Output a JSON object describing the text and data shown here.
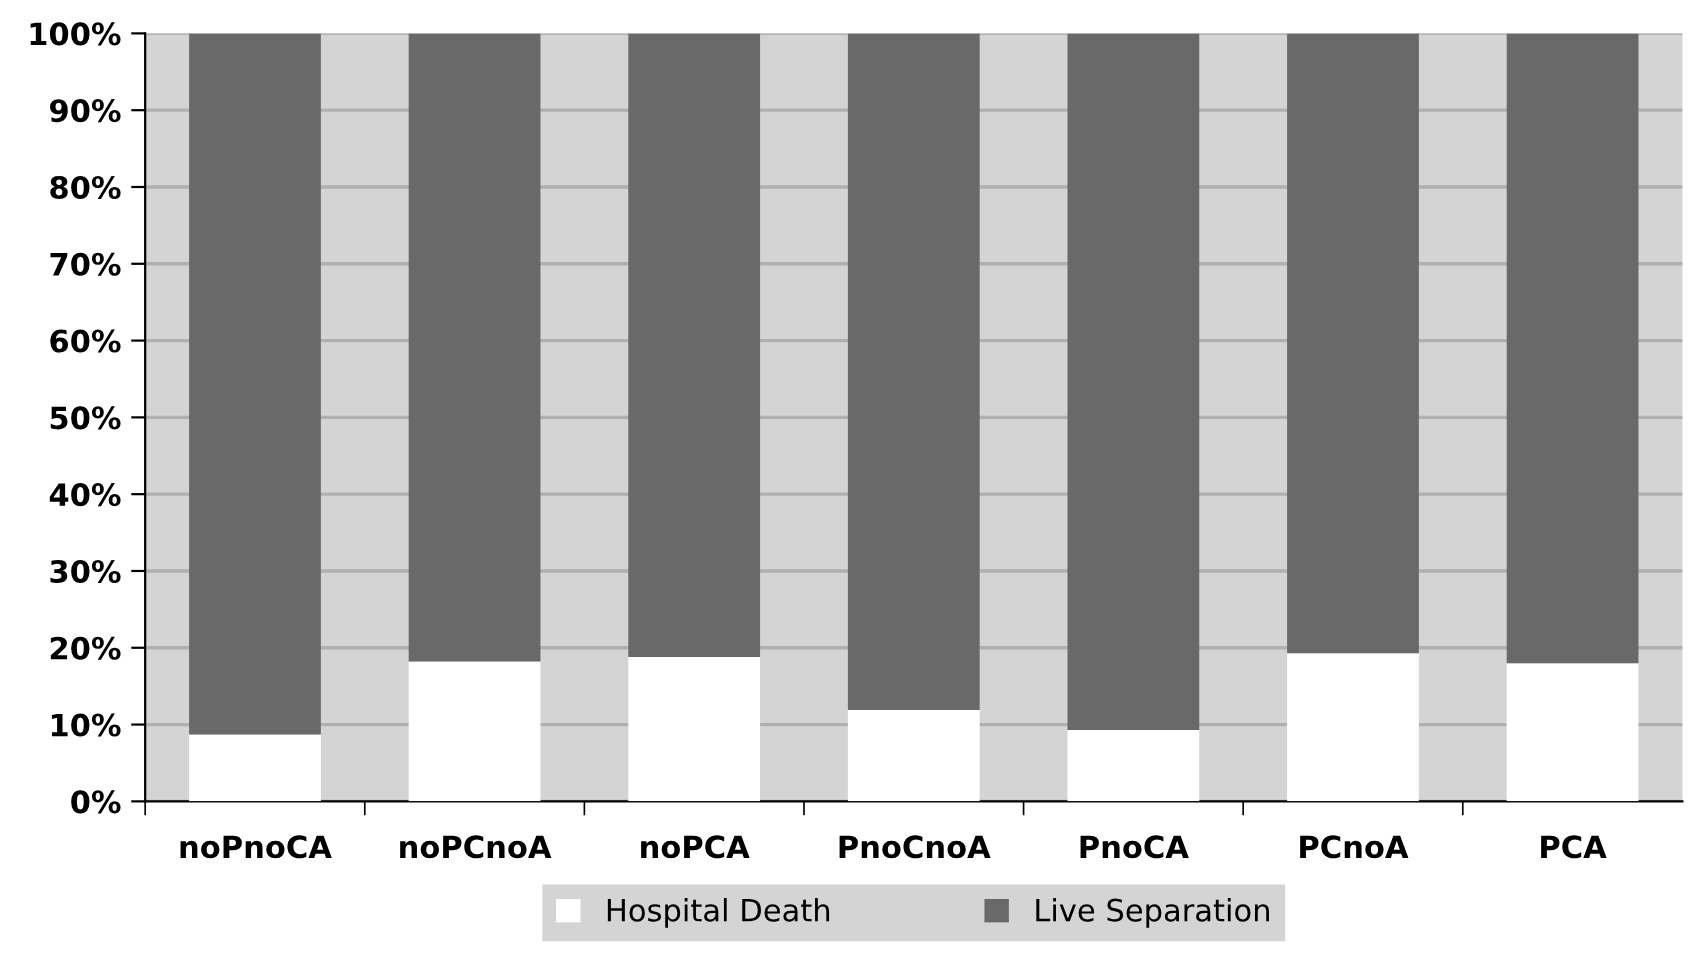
{
  "chart_data": {
    "type": "bar",
    "stacked": true,
    "categories": [
      "noPnoCA",
      "noPCnoA",
      "noPCA",
      "PnoCnoA",
      "PnoCA",
      "PCnoA",
      "PCA"
    ],
    "series": [
      {
        "name": "Hospital Death",
        "color": "#ffffff",
        "values": [
          8.7,
          18.2,
          18.8,
          11.9,
          9.3,
          19.3,
          18.0
        ]
      },
      {
        "name": "Live Separation",
        "color": "#696969",
        "values": [
          91.3,
          81.8,
          81.2,
          88.1,
          90.7,
          80.7,
          82.0
        ]
      }
    ],
    "ylim": [
      0,
      100
    ],
    "yticks": [
      {
        "value": 0,
        "label": "0%"
      },
      {
        "value": 10,
        "label": "10%"
      },
      {
        "value": 20,
        "label": "20%"
      },
      {
        "value": 30,
        "label": "30%"
      },
      {
        "value": 40,
        "label": "40%"
      },
      {
        "value": 50,
        "label": "50%"
      },
      {
        "value": 60,
        "label": "60%"
      },
      {
        "value": 70,
        "label": "70%"
      },
      {
        "value": 80,
        "label": "80%"
      },
      {
        "value": 90,
        "label": "90%"
      },
      {
        "value": 100,
        "label": "100%"
      }
    ],
    "grid": "y",
    "legend": "bottom"
  }
}
